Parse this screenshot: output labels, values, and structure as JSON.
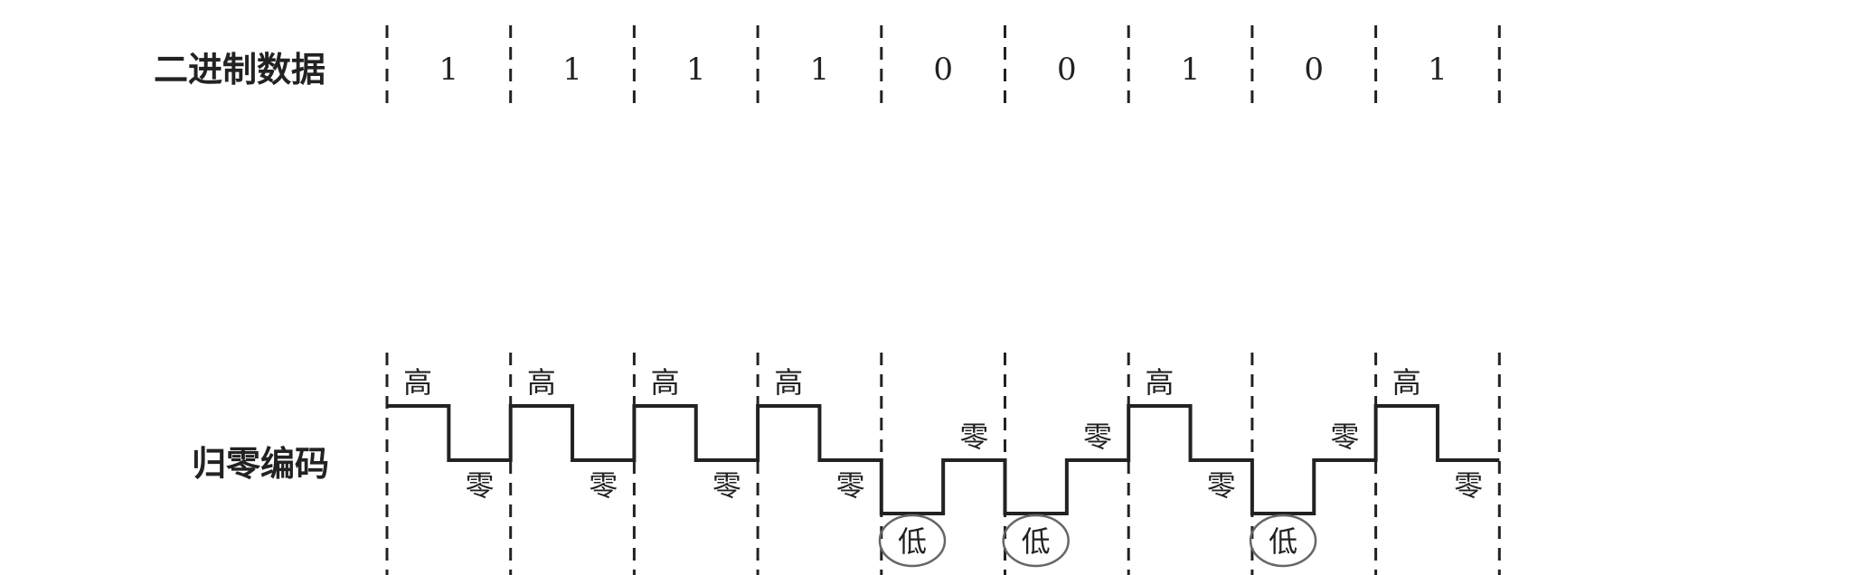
{
  "rows": {
    "binary_title": "二进制数据",
    "rz_title": "归零编码"
  },
  "bits": [
    "1",
    "1",
    "1",
    "1",
    "0",
    "0",
    "1",
    "0",
    "1"
  ],
  "labels": {
    "high": "高",
    "zero": "零",
    "low": "低"
  },
  "colors": {
    "ink": "#222222",
    "circle": "#666666"
  }
}
